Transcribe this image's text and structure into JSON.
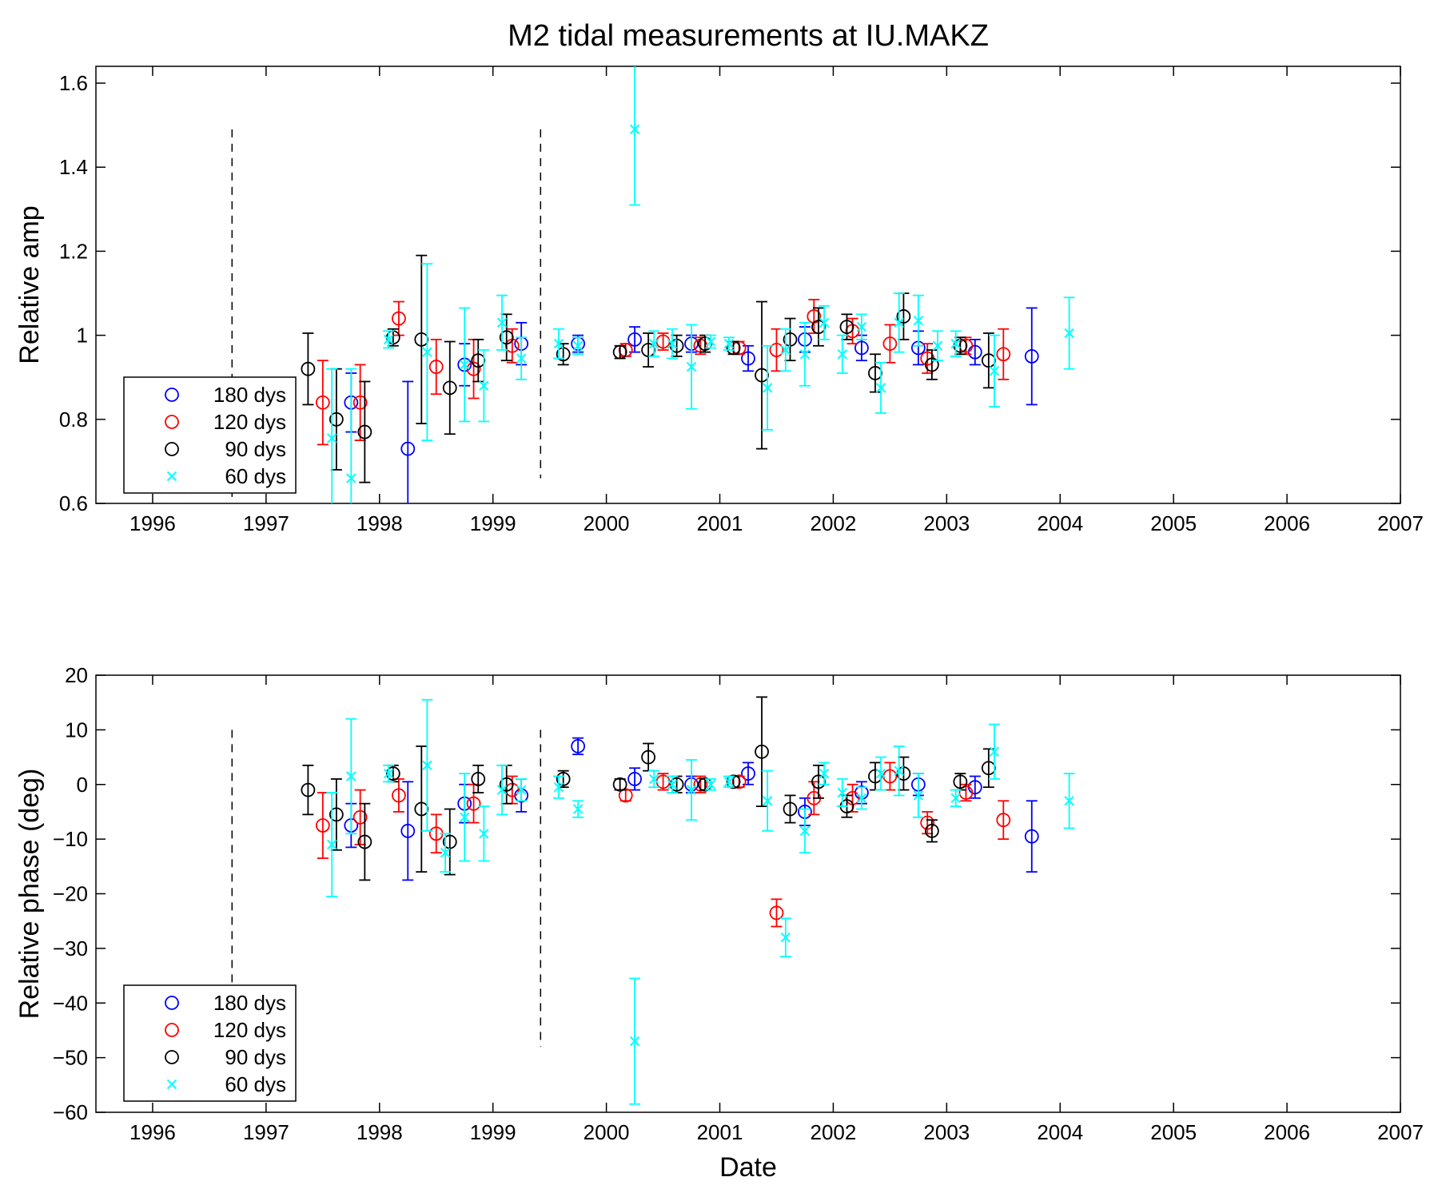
{
  "chart_data": [
    {
      "type": "scatter",
      "title": "M2 tidal measurements at IU.MAKZ",
      "xlabel": "",
      "ylabel": "Relative amp",
      "xlim": [
        1995.5,
        2007
      ],
      "ylim": [
        0.6,
        1.64
      ],
      "xticks": [
        "1996",
        "1997",
        "1998",
        "1999",
        "2000",
        "2001",
        "2002",
        "2003",
        "2004",
        "2005",
        "2006",
        "2007"
      ],
      "yticks": [
        "0.6",
        "0.8",
        "1",
        "1.2",
        "1.4",
        "1.6"
      ],
      "ytick_values": [
        0.6,
        0.8,
        1.0,
        1.2,
        1.4,
        1.6
      ],
      "grid": false,
      "legend_position": "bottom-left",
      "vertical_markers": [
        {
          "x": 1996.7,
          "y": [
            0.6,
            1.49
          ]
        },
        {
          "x": 1999.42,
          "y": [
            0.66,
            1.49
          ]
        }
      ],
      "series": [
        {
          "name": "180 dys",
          "marker": "circle",
          "color": "#0000ff",
          "points": [
            [
              1997.75,
              0.84,
              0.07
            ],
            [
              1998.25,
              0.73,
              0.16
            ],
            [
              1998.75,
              0.93,
              0.05
            ],
            [
              1999.25,
              0.98,
              0.05
            ],
            [
              1999.75,
              0.98,
              0.02
            ],
            [
              2000.25,
              0.99,
              0.03
            ],
            [
              2000.75,
              0.98,
              0.02
            ],
            [
              2001.25,
              0.945,
              0.03
            ],
            [
              2001.75,
              0.99,
              0.03
            ],
            [
              2002.25,
              0.97,
              0.03
            ],
            [
              2002.75,
              0.97,
              0.04
            ],
            [
              2003.25,
              0.96,
              0.03
            ],
            [
              2003.75,
              0.95,
              0.115
            ]
          ]
        },
        {
          "name": "120 dys",
          "marker": "circle",
          "color": "#ff0000",
          "points": [
            [
              1997.5,
              0.84,
              0.1
            ],
            [
              1997.83,
              0.84,
              0.09
            ],
            [
              1998.17,
              1.04,
              0.04
            ],
            [
              1998.5,
              0.925,
              0.065
            ],
            [
              1998.83,
              0.92,
              0.07
            ],
            [
              1999.17,
              0.975,
              0.04
            ],
            [
              2000.17,
              0.965,
              0.015
            ],
            [
              2000.5,
              0.985,
              0.02
            ],
            [
              2000.83,
              0.975,
              0.02
            ],
            [
              2001.17,
              0.97,
              0.015
            ],
            [
              2001.5,
              0.965,
              0.05
            ],
            [
              2001.83,
              1.045,
              0.04
            ],
            [
              2002.17,
              1.01,
              0.03
            ],
            [
              2002.5,
              0.98,
              0.045
            ],
            [
              2002.83,
              0.945,
              0.035
            ],
            [
              2003.17,
              0.975,
              0.02
            ],
            [
              2003.5,
              0.955,
              0.06
            ]
          ]
        },
        {
          "name": "90 dys",
          "marker": "circle",
          "color": "#000000",
          "points": [
            [
              1997.37,
              0.92,
              0.085
            ],
            [
              1997.62,
              0.8,
              0.12
            ],
            [
              1997.87,
              0.77,
              0.12
            ],
            [
              1998.12,
              0.995,
              0.02
            ],
            [
              1998.37,
              0.99,
              0.2
            ],
            [
              1998.62,
              0.875,
              0.11
            ],
            [
              1998.87,
              0.94,
              0.05
            ],
            [
              1999.12,
              0.995,
              0.055
            ],
            [
              1999.62,
              0.955,
              0.025
            ],
            [
              2000.12,
              0.96,
              0.015
            ],
            [
              2000.37,
              0.965,
              0.04
            ],
            [
              2000.62,
              0.975,
              0.025
            ],
            [
              2000.87,
              0.98,
              0.02
            ],
            [
              2001.12,
              0.97,
              0.015
            ],
            [
              2001.37,
              0.905,
              0.175
            ],
            [
              2001.62,
              0.99,
              0.05
            ],
            [
              2001.87,
              1.02,
              0.045
            ],
            [
              2002.12,
              1.02,
              0.03
            ],
            [
              2002.37,
              0.91,
              0.045
            ],
            [
              2002.62,
              1.045,
              0.055
            ],
            [
              2002.87,
              0.93,
              0.035
            ],
            [
              2003.12,
              0.975,
              0.02
            ],
            [
              2003.37,
              0.94,
              0.065
            ]
          ]
        },
        {
          "name": "60 dys",
          "marker": "x",
          "color": "#00ffff",
          "points": [
            [
              1997.58,
              0.755,
              0.165
            ],
            [
              1997.75,
              0.66,
              0.26
            ],
            [
              1998.08,
              0.99,
              0.02
            ],
            [
              1998.42,
              0.96,
              0.21
            ],
            [
              1998.75,
              0.93,
              0.135
            ],
            [
              1998.92,
              0.88,
              0.085
            ],
            [
              1999.08,
              1.03,
              0.065
            ],
            [
              1999.25,
              0.945,
              0.05
            ],
            [
              1999.58,
              0.98,
              0.035
            ],
            [
              1999.75,
              0.975,
              0.02
            ],
            [
              2000.25,
              1.49,
              0.18
            ],
            [
              2000.42,
              0.98,
              0.03
            ],
            [
              2000.58,
              0.98,
              0.035
            ],
            [
              2000.75,
              0.925,
              0.1
            ],
            [
              2000.92,
              0.985,
              0.015
            ],
            [
              2001.08,
              0.98,
              0.015
            ],
            [
              2001.42,
              0.875,
              0.1
            ],
            [
              2001.58,
              0.965,
              0.05
            ],
            [
              2001.75,
              0.955,
              0.075
            ],
            [
              2001.92,
              1.03,
              0.04
            ],
            [
              2002.08,
              0.955,
              0.045
            ],
            [
              2002.25,
              1.02,
              0.03
            ],
            [
              2002.42,
              0.875,
              0.06
            ],
            [
              2002.58,
              1.03,
              0.07
            ],
            [
              2002.75,
              1.035,
              0.06
            ],
            [
              2002.92,
              0.975,
              0.035
            ],
            [
              2003.08,
              0.98,
              0.03
            ],
            [
              2003.42,
              0.915,
              0.085
            ],
            [
              2004.08,
              1.005,
              0.085
            ]
          ]
        }
      ]
    },
    {
      "type": "scatter",
      "title": "",
      "xlabel": "Date",
      "ylabel": "Relative phase (deg)",
      "xlim": [
        1995.5,
        2007
      ],
      "ylim": [
        -60,
        20
      ],
      "xticks": [
        "1996",
        "1997",
        "1998",
        "1999",
        "2000",
        "2001",
        "2002",
        "2003",
        "2004",
        "2005",
        "2006",
        "2007"
      ],
      "yticks": [
        "−60",
        "−50",
        "−40",
        "−30",
        "−20",
        "−10",
        "0",
        "10",
        "20"
      ],
      "ytick_values": [
        -60,
        -50,
        -40,
        -30,
        -20,
        -10,
        0,
        10,
        20
      ],
      "grid": false,
      "legend_position": "bottom-left",
      "vertical_markers": [
        {
          "x": 1996.7,
          "y": [
            -48,
            10
          ]
        },
        {
          "x": 1999.42,
          "y": [
            -48,
            10
          ]
        }
      ],
      "series": [
        {
          "name": "180 dys",
          "marker": "circle",
          "color": "#0000ff",
          "points": [
            [
              1997.75,
              -7.5,
              4
            ],
            [
              1998.25,
              -8.5,
              9
            ],
            [
              1998.75,
              -3.5,
              3.5
            ],
            [
              1999.25,
              -2,
              3
            ],
            [
              1999.75,
              7,
              1.5
            ],
            [
              2000.25,
              1,
              2
            ],
            [
              2000.75,
              0,
              1.5
            ],
            [
              2001.25,
              2,
              2
            ],
            [
              2001.75,
              -5,
              2.5
            ],
            [
              2002.25,
              -1.5,
              2
            ],
            [
              2002.75,
              0,
              2
            ],
            [
              2003.25,
              -0.5,
              2
            ],
            [
              2003.75,
              -9.5,
              6.5
            ]
          ]
        },
        {
          "name": "120 dys",
          "marker": "circle",
          "color": "#ff0000",
          "points": [
            [
              1997.5,
              -7.5,
              6
            ],
            [
              1997.83,
              -6,
              5
            ],
            [
              1998.17,
              -2,
              3
            ],
            [
              1998.5,
              -9,
              3.5
            ],
            [
              1998.83,
              -3.5,
              3.5
            ],
            [
              1999.17,
              -1,
              2.5
            ],
            [
              2000.17,
              -2,
              1
            ],
            [
              2000.5,
              0.5,
              1.5
            ],
            [
              2000.83,
              0,
              1.5
            ],
            [
              2001.17,
              0.5,
              1
            ],
            [
              2001.5,
              -23.5,
              2.5
            ],
            [
              2001.83,
              -2.5,
              3
            ],
            [
              2002.17,
              -2.5,
              2.5
            ],
            [
              2002.5,
              1.5,
              2.5
            ],
            [
              2002.83,
              -7,
              2
            ],
            [
              2003.17,
              -1.5,
              1.5
            ],
            [
              2003.5,
              -6.5,
              3.5
            ]
          ]
        },
        {
          "name": "90 dys",
          "marker": "circle",
          "color": "#000000",
          "points": [
            [
              1997.37,
              -1,
              4.5
            ],
            [
              1997.62,
              -5.5,
              6.5
            ],
            [
              1997.87,
              -10.5,
              7
            ],
            [
              1998.12,
              2,
              1.5
            ],
            [
              1998.37,
              -4.5,
              11.5
            ],
            [
              1998.62,
              -10.5,
              6
            ],
            [
              1998.87,
              1,
              2.5
            ],
            [
              1999.12,
              0,
              3.5
            ],
            [
              1999.62,
              1,
              1.5
            ],
            [
              2000.12,
              0,
              1
            ],
            [
              2000.37,
              5,
              2.5
            ],
            [
              2000.62,
              0,
              1.5
            ],
            [
              2000.87,
              0,
              1
            ],
            [
              2001.12,
              0.5,
              1
            ],
            [
              2001.37,
              6,
              10
            ],
            [
              2001.62,
              -4.5,
              2.5
            ],
            [
              2001.87,
              0.5,
              3
            ],
            [
              2002.12,
              -4,
              2
            ],
            [
              2002.37,
              1.5,
              2.5
            ],
            [
              2002.62,
              2,
              3
            ],
            [
              2002.87,
              -8.5,
              2
            ],
            [
              2003.12,
              0.5,
              1.5
            ],
            [
              2003.37,
              3,
              3.5
            ]
          ]
        },
        {
          "name": "60 dys",
          "marker": "x",
          "color": "#00ffff",
          "points": [
            [
              1997.58,
              -11,
              9.5
            ],
            [
              1997.75,
              1.5,
              10.5
            ],
            [
              1998.08,
              2,
              1.5
            ],
            [
              1998.42,
              3.5,
              12
            ],
            [
              1998.58,
              -12.5,
              3.5
            ],
            [
              1998.75,
              -6,
              8
            ],
            [
              1998.92,
              -9,
              5
            ],
            [
              1999.08,
              -1,
              4.5
            ],
            [
              1999.25,
              -1,
              2
            ],
            [
              1999.58,
              -0.5,
              2
            ],
            [
              1999.75,
              -4.5,
              1.5
            ],
            [
              2000.25,
              -47,
              11.5
            ],
            [
              2000.42,
              1,
              1.5
            ],
            [
              2000.58,
              0,
              1.5
            ],
            [
              2000.75,
              -1,
              5.5
            ],
            [
              2000.92,
              0,
              1
            ],
            [
              2001.08,
              0.5,
              1
            ],
            [
              2001.42,
              -3,
              5.5
            ],
            [
              2001.58,
              -28,
              3.5
            ],
            [
              2001.75,
              -8.5,
              4
            ],
            [
              2001.92,
              2,
              2
            ],
            [
              2002.08,
              -1.5,
              2.5
            ],
            [
              2002.25,
              -2.5,
              2
            ],
            [
              2002.42,
              2,
              3
            ],
            [
              2002.58,
              2.5,
              4.5
            ],
            [
              2002.75,
              -2,
              4
            ],
            [
              2003.08,
              -2.5,
              1.5
            ],
            [
              2003.42,
              6,
              5
            ],
            [
              2004.08,
              -3,
              5
            ]
          ]
        }
      ]
    }
  ]
}
